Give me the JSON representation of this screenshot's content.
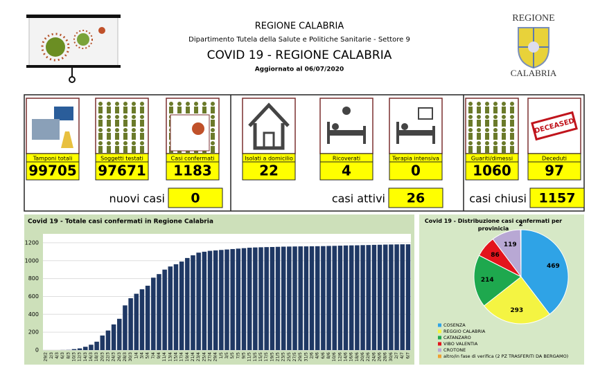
{
  "header": {
    "title": "REGIONE CALABRIA",
    "department": "Dipartimento Tutela della Salute e Politiche Sanitarie - Settore 9",
    "headline": "COVID 19 - REGIONE CALABRIA",
    "updated": "Aggiornato al  06/07/2020"
  },
  "logo": {
    "top": "REGIONE",
    "bottom": "CALABRIA"
  },
  "stamp": "DECEASED",
  "stats": {
    "groups": [
      {
        "items": [
          {
            "label": "Tamponi totali",
            "value": 99705
          },
          {
            "label": "Soggetti testati",
            "value": 97671
          },
          {
            "label": "Casi confermati",
            "value": 1183
          }
        ],
        "summary": {
          "label": "nuovi casi",
          "value": 0
        }
      },
      {
        "items": [
          {
            "label": "Isolati a domicilio",
            "value": 22
          },
          {
            "label": "Ricoverati",
            "value": 4
          },
          {
            "label": "Terapia intensiva",
            "value": 0
          }
        ],
        "summary": {
          "label": "casi attivi",
          "value": 26
        }
      },
      {
        "items": [
          {
            "label": "Guariti/dimessi",
            "value": 1060
          },
          {
            "label": "Deceduti",
            "value": 97
          }
        ],
        "summary": {
          "label": "casi chiusi",
          "value": 1157
        }
      }
    ]
  },
  "chart_data": [
    {
      "type": "bar",
      "title": "Covid 19 - Totale casi confermati in Regione Calabria",
      "color": "#1f3864",
      "categories": [
        "29/2",
        "2/3",
        "4/3",
        "6/3",
        "8/3",
        "10/3",
        "12/3",
        "14/3",
        "16/3",
        "18/3",
        "20/3",
        "22/3",
        "24/3",
        "26/3",
        "28/3",
        "30/3",
        "1/4",
        "3/4",
        "5/4",
        "7/4",
        "9/4",
        "11/4",
        "13/4",
        "15/4",
        "17/4",
        "19/4",
        "21/4",
        "23/4",
        "25/4",
        "27/4",
        "29/4",
        "1/5",
        "3/5",
        "5/5",
        "7/5",
        "9/5",
        "11/5",
        "13/5",
        "15/5",
        "17/5",
        "19/5",
        "21/5",
        "23/5",
        "25/5",
        "27/5",
        "29/5",
        "31/5",
        "2/6",
        "4/6",
        "6/6",
        "8/6",
        "10/6",
        "12/6",
        "14/6",
        "16/6",
        "18/6",
        "20/6",
        "22/6",
        "24/6",
        "26/6",
        "28/6",
        "30/6",
        "2/7",
        "4/7",
        "6/7"
      ],
      "values": [
        0,
        0,
        0,
        1,
        2,
        11,
        19,
        37,
        60,
        94,
        163,
        219,
        287,
        350,
        500,
        580,
        630,
        680,
        720,
        810,
        850,
        900,
        935,
        960,
        990,
        1030,
        1060,
        1090,
        1100,
        1110,
        1115,
        1120,
        1125,
        1130,
        1135,
        1140,
        1145,
        1148,
        1150,
        1152,
        1153,
        1155,
        1157,
        1158,
        1159,
        1160,
        1160,
        1161,
        1162,
        1163,
        1165,
        1166,
        1168,
        1170,
        1171,
        1172,
        1174,
        1175,
        1177,
        1178,
        1180,
        1181,
        1182,
        1183,
        1183
      ],
      "ylim": [
        0,
        1300
      ],
      "yticks": [
        0,
        200,
        400,
        600,
        800,
        1000,
        1200
      ],
      "grid": true
    },
    {
      "type": "pie",
      "title": "Covid 19 - Distribuzione casi confermati per provinicia",
      "categories": [
        "COSENZA",
        "REGGIO CALABRIA",
        "CATANZARO",
        "VIBO VALENTIA",
        "CROTONE",
        "altro/in fase di verifica (2 PZ TRASFERITI DA BERGAMO)"
      ],
      "values": [
        469,
        293,
        214,
        86,
        119,
        2
      ],
      "colors": [
        "#2fa3e6",
        "#f4f442",
        "#1ea84e",
        "#e3141c",
        "#b8a8d4",
        "#f0a030"
      ]
    }
  ]
}
